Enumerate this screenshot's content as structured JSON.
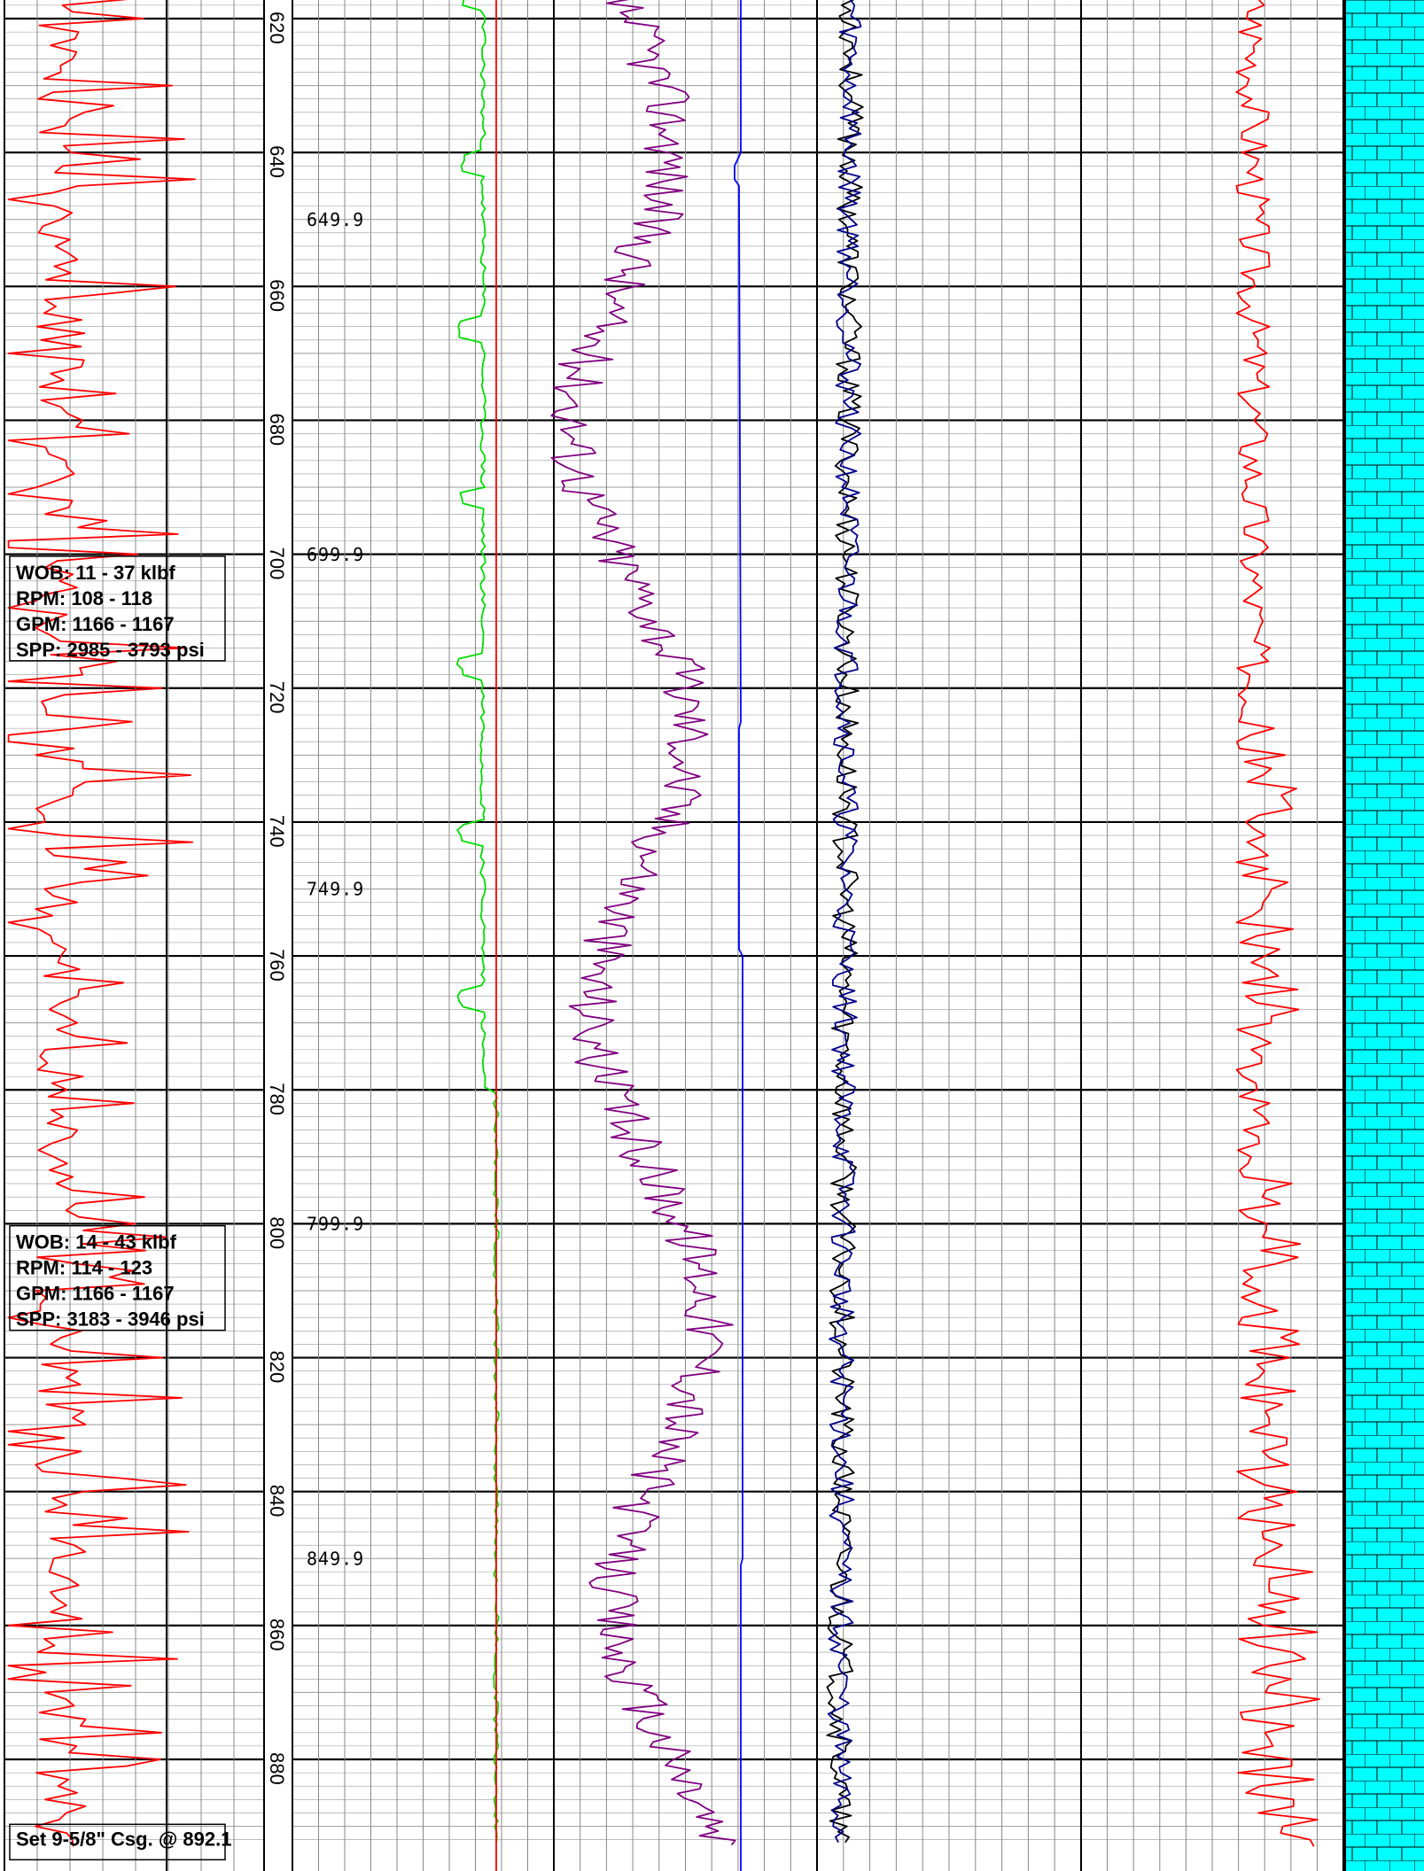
{
  "chart_data": {
    "type": "line",
    "depth_range": [
      610,
      890
    ],
    "depth_ticks": [
      620,
      640,
      660,
      680,
      700,
      720,
      740,
      760,
      780,
      800,
      820,
      840,
      860,
      880
    ],
    "depth_markers": [
      {
        "depth": 649.9,
        "label": "649.9"
      },
      {
        "depth": 699.9,
        "label": "699.9"
      },
      {
        "depth": 749.9,
        "label": "749.9"
      },
      {
        "depth": 799.9,
        "label": "799.9"
      },
      {
        "depth": 849.9,
        "label": "849.9"
      }
    ],
    "parameter_boxes": [
      {
        "depth_top": 700.3,
        "lines": [
          "WOB: 11 - 37 klbf",
          "RPM: 108 - 118",
          "GPM: 1166 - 1167",
          "SPP: 2985 - 3793 psi"
        ]
      },
      {
        "depth_top": 800.3,
        "lines": [
          "WOB: 14 - 43 klbf",
          "RPM: 114 - 123",
          "GPM: 1166 - 1167",
          "SPP: 3183 - 3946 psi"
        ]
      }
    ],
    "casing_note": {
      "depth": 889.7,
      "text": "Set 9-5/8\" Csg. @ 892.1"
    },
    "lithology": {
      "type": "limestone",
      "fill_color": "#00FFFF",
      "line_color": "#000000"
    },
    "grid": true,
    "series": [
      {
        "track": 1,
        "color": "#FF0000",
        "kind": "rop_spiky",
        "seed": 11,
        "amplitude": 0.9
      },
      {
        "track": 2,
        "color": "#00DD00",
        "kind": "gas_baseline",
        "seed": 23,
        "amplitude": 0.2
      },
      {
        "track": 2,
        "color": "#FF0000",
        "kind": "flat_red",
        "seed": 5,
        "amplitude": 0.01
      },
      {
        "track": 3,
        "color": "#800080",
        "kind": "purple_wiggle",
        "seed": 37,
        "amplitude": 0.5
      },
      {
        "track": 3,
        "color": "#0000FF",
        "kind": "blue_step",
        "seed": 41,
        "amplitude": 0.05
      },
      {
        "track": 4,
        "color": "#000000",
        "kind": "dark_pair_a",
        "seed": 53,
        "amplitude": 0.35
      },
      {
        "track": 4,
        "color": "#00008B",
        "kind": "dark_pair_b",
        "seed": 59,
        "amplitude": 0.35
      },
      {
        "track": 5,
        "color": "#FF0000",
        "kind": "right_red",
        "seed": 67,
        "amplitude": 0.4
      }
    ]
  }
}
